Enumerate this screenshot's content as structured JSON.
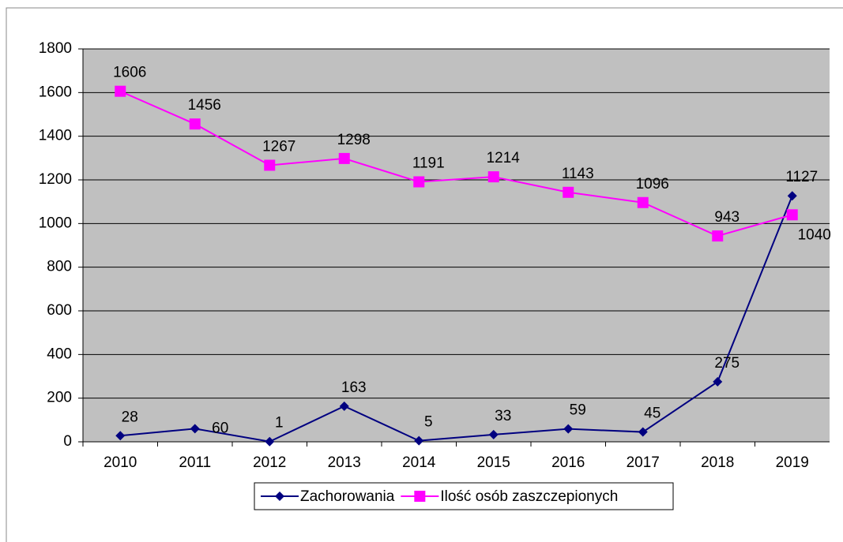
{
  "chart_data": {
    "type": "line",
    "categories": [
      "2010",
      "2011",
      "2012",
      "2013",
      "2014",
      "2015",
      "2016",
      "2017",
      "2018",
      "2019"
    ],
    "series": [
      {
        "name": "Zachorowania",
        "color": "#000080",
        "values": [
          28,
          60,
          1,
          163,
          5,
          33,
          59,
          45,
          275,
          1127
        ]
      },
      {
        "name": "Ilość osób zaszczepionych",
        "color": "#ff00ff",
        "values": [
          1606,
          1456,
          1267,
          1298,
          1191,
          1214,
          1143,
          1096,
          943,
          1040
        ]
      }
    ],
    "ylim": [
      0,
      1800
    ],
    "yticks": [
      0,
      200,
      400,
      600,
      800,
      1000,
      1200,
      1400,
      1600,
      1800
    ],
    "grid": true,
    "legend": "bottom"
  }
}
